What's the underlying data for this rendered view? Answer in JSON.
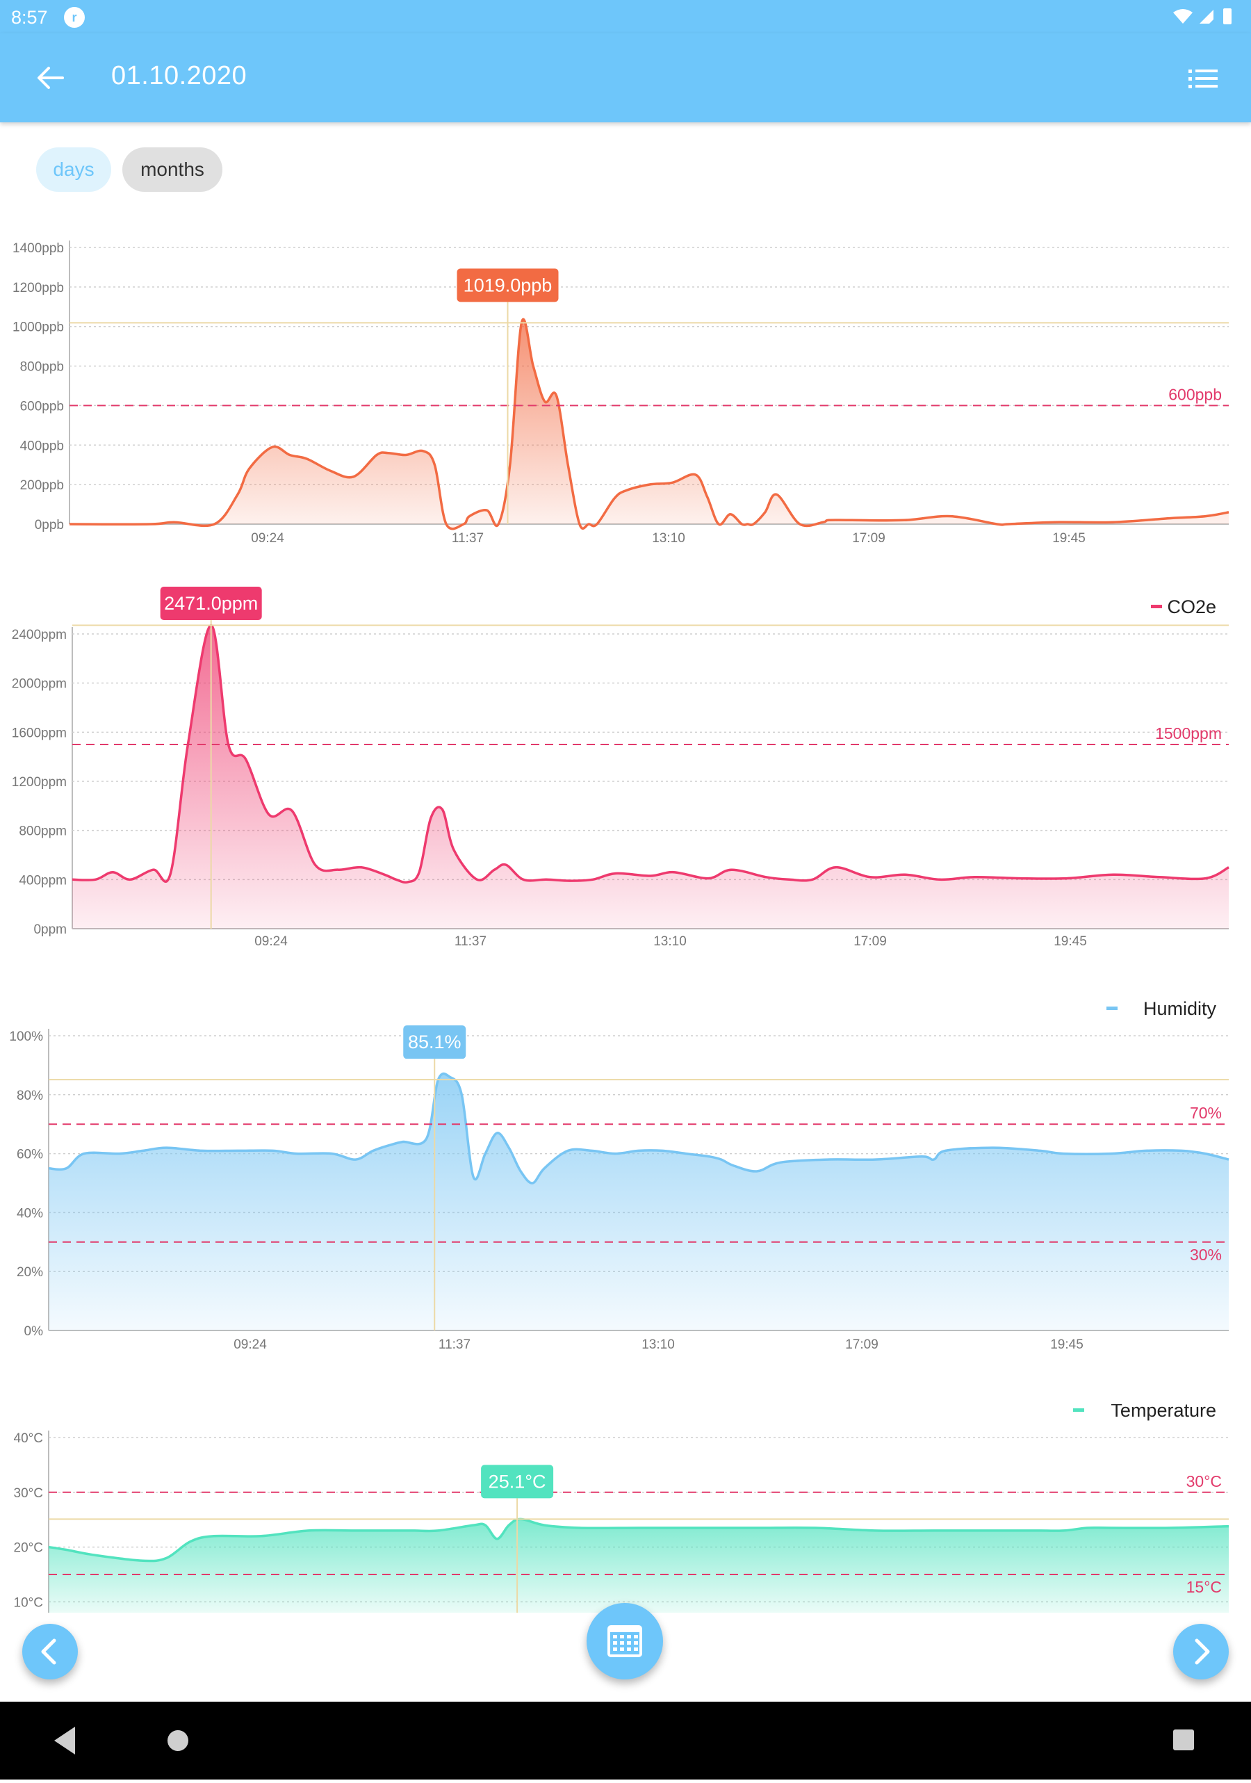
{
  "status_bar": {
    "time": "8:57",
    "app_badge": "r"
  },
  "header": {
    "title": "01.10.2020"
  },
  "tabs": [
    {
      "label": "days"
    },
    {
      "label": "months"
    }
  ],
  "x_ticks": [
    "09:24",
    "11:37",
    "13:10",
    "17:09",
    "19:45"
  ],
  "chart_data": [
    {
      "type": "area",
      "color": "#f26b43",
      "legend": "",
      "yticks": [
        "0ppb",
        "200ppb",
        "400ppb",
        "600ppb",
        "800ppb",
        "1000ppb",
        "1200ppb",
        "1400ppb"
      ],
      "ylim": [
        0,
        1400
      ],
      "threshold_labels": [
        "600ppb"
      ],
      "thresholds": [
        600
      ],
      "marker": {
        "label": "1019.0ppb",
        "value": 1019,
        "x": 0.378
      },
      "x": [
        0,
        0.07,
        0.09,
        0.125,
        0.145,
        0.155,
        0.175,
        0.19,
        0.205,
        0.225,
        0.245,
        0.265,
        0.275,
        0.29,
        0.305,
        0.315,
        0.325,
        0.34,
        0.345,
        0.36,
        0.37,
        0.38,
        0.39,
        0.4,
        0.41,
        0.42,
        0.43,
        0.44,
        0.448,
        0.455,
        0.47,
        0.48,
        0.5,
        0.52,
        0.54,
        0.55,
        0.56,
        0.57,
        0.58,
        0.585,
        0.59,
        0.6,
        0.61,
        0.63,
        0.65,
        0.655,
        0.675,
        0.72,
        0.76,
        0.8,
        0.81,
        0.85,
        0.9,
        0.95,
        0.98,
        1.0
      ],
      "y": [
        0,
        0,
        10,
        0,
        150,
        280,
        390,
        350,
        330,
        270,
        240,
        350,
        360,
        350,
        370,
        300,
        0,
        0,
        40,
        70,
        0,
        300,
        1019,
        800,
        620,
        650,
        300,
        0,
        0,
        0,
        130,
        170,
        200,
        210,
        250,
        140,
        0,
        50,
        0,
        0,
        0,
        60,
        150,
        0,
        10,
        20,
        20,
        20,
        40,
        0,
        0,
        10,
        10,
        30,
        40,
        60
      ]
    },
    {
      "type": "area",
      "color": "#ee3a6e",
      "legend": "CO2e",
      "yticks": [
        "0ppm",
        "400ppm",
        "800ppm",
        "1200ppm",
        "1600ppm",
        "2000ppm",
        "2400ppm"
      ],
      "ylim": [
        0,
        2400
      ],
      "threshold_labels": [
        "1500ppm"
      ],
      "thresholds": [
        1500
      ],
      "marker": {
        "label": "2471.0ppm",
        "value": 2471,
        "x": 0.12
      },
      "x": [
        0,
        0.02,
        0.035,
        0.05,
        0.07,
        0.085,
        0.1,
        0.12,
        0.135,
        0.15,
        0.17,
        0.19,
        0.21,
        0.23,
        0.25,
        0.27,
        0.28,
        0.29,
        0.3,
        0.31,
        0.32,
        0.33,
        0.35,
        0.365,
        0.375,
        0.39,
        0.41,
        0.43,
        0.45,
        0.47,
        0.5,
        0.52,
        0.55,
        0.57,
        0.6,
        0.62,
        0.64,
        0.66,
        0.69,
        0.72,
        0.75,
        0.78,
        0.82,
        0.86,
        0.9,
        0.94,
        0.98,
        1.0
      ],
      "y": [
        400,
        400,
        460,
        400,
        480,
        450,
        1500,
        2471,
        1500,
        1380,
        930,
        960,
        520,
        480,
        500,
        440,
        400,
        380,
        460,
        900,
        970,
        640,
        400,
        480,
        520,
        400,
        400,
        390,
        400,
        450,
        430,
        460,
        410,
        480,
        420,
        400,
        400,
        500,
        420,
        440,
        400,
        420,
        410,
        410,
        440,
        420,
        410,
        500
      ]
    },
    {
      "type": "area",
      "color": "#78c5f3",
      "legend": "Humidity",
      "yticks": [
        "0%",
        "20%",
        "40%",
        "60%",
        "80%",
        "100%"
      ],
      "ylim": [
        0,
        100
      ],
      "threshold_labels": [
        "70%",
        "30%"
      ],
      "thresholds": [
        70,
        30
      ],
      "marker": {
        "label": "85.1%",
        "value": 85.1,
        "x": 0.327
      },
      "x": [
        0,
        0.015,
        0.03,
        0.06,
        0.08,
        0.1,
        0.13,
        0.16,
        0.19,
        0.21,
        0.24,
        0.26,
        0.275,
        0.29,
        0.3,
        0.32,
        0.33,
        0.34,
        0.35,
        0.36,
        0.37,
        0.38,
        0.39,
        0.4,
        0.41,
        0.42,
        0.44,
        0.46,
        0.48,
        0.5,
        0.52,
        0.54,
        0.56,
        0.57,
        0.58,
        0.6,
        0.62,
        0.66,
        0.7,
        0.74,
        0.75,
        0.76,
        0.8,
        0.84,
        0.86,
        0.9,
        0.93,
        0.96,
        0.98,
        1.0
      ],
      "y": [
        55,
        55,
        60,
        60,
        61,
        62,
        61,
        61,
        61,
        60,
        60,
        58,
        61,
        63,
        64,
        65,
        85,
        86,
        80,
        52,
        60,
        67,
        62,
        54,
        50,
        55,
        61,
        61,
        60,
        61,
        61,
        60,
        59,
        58,
        56,
        54,
        57,
        58,
        58,
        59,
        58,
        61,
        62,
        61,
        60,
        60,
        61,
        61,
        60,
        58
      ]
    },
    {
      "type": "area",
      "color": "#52e3bf",
      "legend": "Temperature",
      "yticks": [
        "10°C",
        "20°C",
        "30°C",
        "40°C"
      ],
      "ylim": [
        7,
        40
      ],
      "threshold_labels": [
        "30°C",
        "15°C"
      ],
      "thresholds": [
        30,
        15
      ],
      "marker": {
        "label": "25.1°C",
        "value": 25.1,
        "x": 0.397
      },
      "x": [
        0,
        0.015,
        0.04,
        0.08,
        0.1,
        0.12,
        0.14,
        0.18,
        0.22,
        0.26,
        0.29,
        0.31,
        0.33,
        0.36,
        0.37,
        0.38,
        0.39,
        0.4,
        0.42,
        0.45,
        0.5,
        0.55,
        0.6,
        0.65,
        0.7,
        0.75,
        0.8,
        0.84,
        0.86,
        0.88,
        0.9,
        0.95,
        1.0
      ],
      "y": [
        20,
        19.5,
        18.5,
        17.5,
        18,
        21,
        22,
        22,
        23,
        23,
        23,
        23,
        23,
        24,
        24,
        21.5,
        24,
        25.1,
        24,
        23.5,
        23.5,
        23.5,
        23.5,
        23.5,
        23,
        23,
        23,
        23,
        23,
        23.5,
        23.5,
        23.5,
        23.8
      ]
    }
  ]
}
